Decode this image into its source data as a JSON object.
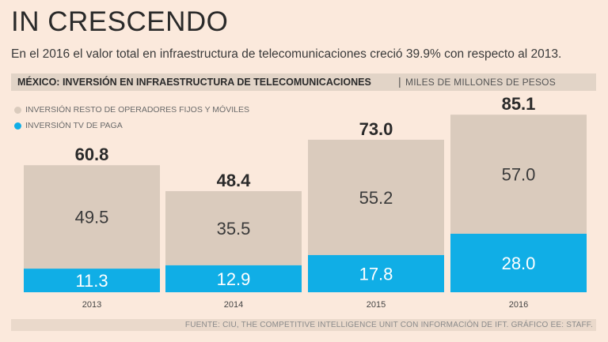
{
  "title": "IN CRESCENDO",
  "subtitle": "En el 2016 el valor total en infraestructura de telecomunicaciones creció 39.9% con respecto al 2013.",
  "band": {
    "bold": "MÉXICO: INVERSIÓN EN INFRAESTRUCTURA DE TELECOMUNICACIONES",
    "sep": "|",
    "light": "MILES DE MILLONES DE PESOS"
  },
  "legend": {
    "rest": "INVERSIÓN RESTO DE OPERADORES FIJOS Y MÓVILES",
    "tv": "INVERSIÓN TV DE PAGA"
  },
  "source": "FUENTE: CIU, THE COMPETITIVE INTELLIGENCE UNIT CON INFORMACIÓN DE IFT.  GRÁFICO EE: STAFF.",
  "colors": {
    "rest": "#dacbbd",
    "tv": "#10aee6",
    "text": "#2a2a2a",
    "tick": "#444444"
  },
  "chart_data": {
    "type": "bar",
    "stacked": true,
    "categories": [
      "2013",
      "2014",
      "2015",
      "2016"
    ],
    "series": [
      {
        "name": "INVERSIÓN TV DE PAGA",
        "values": [
          11.3,
          12.9,
          17.8,
          28.0
        ],
        "labels": [
          "11.3",
          "12.9",
          "17.8",
          "28.0"
        ]
      },
      {
        "name": "INVERSIÓN RESTO DE OPERADORES FIJOS Y MÓVILES",
        "values": [
          49.5,
          35.5,
          55.2,
          57.0
        ],
        "labels": [
          "49.5",
          "35.5",
          "55.2",
          "57.0"
        ]
      }
    ],
    "totals": [
      60.8,
      48.4,
      73.0,
      85.1
    ],
    "total_labels": [
      "60.8",
      "48.4",
      "73.0",
      "85.1"
    ],
    "grid": false
  }
}
